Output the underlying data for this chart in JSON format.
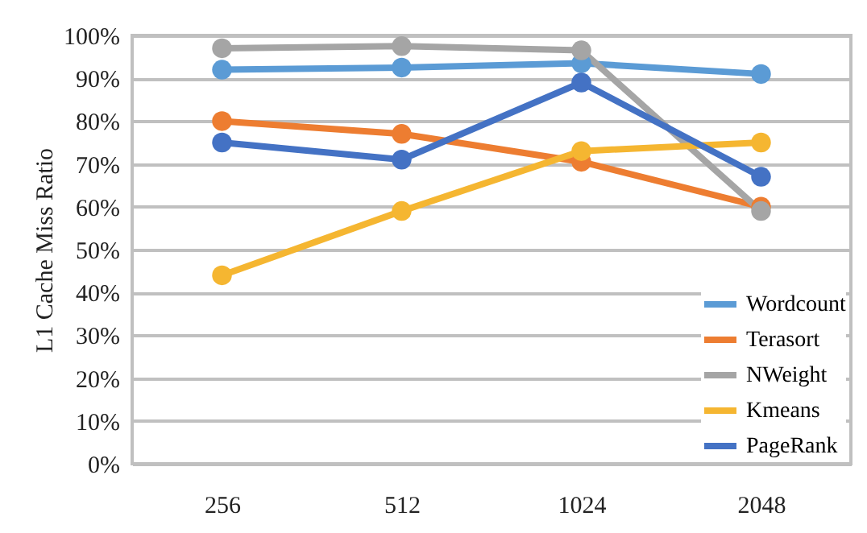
{
  "chart_data": {
    "type": "line",
    "ylabel": "L1 Cache Miss Ratio",
    "categories": [
      "256",
      "512",
      "1024",
      "2048"
    ],
    "series": [
      {
        "name": "Wordcount",
        "color": "#5b9bd5",
        "values": [
          92,
          92.5,
          93.5,
          91
        ]
      },
      {
        "name": "Terasort",
        "color": "#ed7d31",
        "values": [
          80,
          77,
          70.5,
          60
        ]
      },
      {
        "name": "NWeight",
        "color": "#a5a5a5",
        "values": [
          97,
          97.5,
          96.5,
          59
        ]
      },
      {
        "name": "Kmeans",
        "color": "#f5b631",
        "values": [
          44,
          59,
          73,
          75
        ]
      },
      {
        "name": "PageRank",
        "color": "#4472c4",
        "values": [
          75,
          71,
          89,
          67
        ]
      }
    ],
    "ylim": [
      0,
      100
    ],
    "yticks": [
      {
        "value": 0,
        "label": "0%"
      },
      {
        "value": 10,
        "label": "10%"
      },
      {
        "value": 20,
        "label": "20%"
      },
      {
        "value": 30,
        "label": "30%"
      },
      {
        "value": 40,
        "label": "40%"
      },
      {
        "value": 50,
        "label": "50%"
      },
      {
        "value": 60,
        "label": "60%"
      },
      {
        "value": 70,
        "label": "70%"
      },
      {
        "value": 80,
        "label": "80%"
      },
      {
        "value": 90,
        "label": "90%"
      },
      {
        "value": 100,
        "label": "100%"
      }
    ],
    "grid": "y",
    "legend": "bottom right",
    "marker": "circle",
    "line_style": "solid"
  }
}
